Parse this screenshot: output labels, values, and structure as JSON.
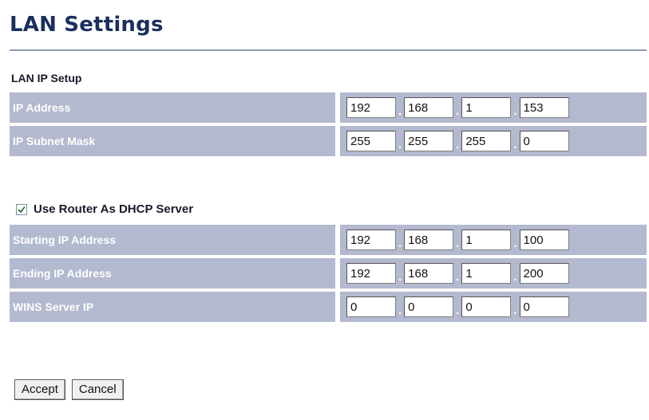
{
  "page": {
    "title": "LAN Settings"
  },
  "lan_ip_setup": {
    "section_label": "LAN IP Setup",
    "rows": [
      {
        "label": "IP Address",
        "octets": [
          "192",
          "168",
          "1",
          "153"
        ]
      },
      {
        "label": "IP Subnet Mask",
        "octets": [
          "255",
          "255",
          "255",
          "0"
        ]
      }
    ]
  },
  "dhcp": {
    "checkbox_label": "Use Router As DHCP Server",
    "checked": true,
    "rows": [
      {
        "label": "Starting IP Address",
        "octets": [
          "192",
          "168",
          "1",
          "100"
        ]
      },
      {
        "label": "Ending IP Address",
        "octets": [
          "192",
          "168",
          "1",
          "200"
        ]
      },
      {
        "label": "WINS Server IP",
        "octets": [
          "0",
          "0",
          "0",
          "0"
        ]
      }
    ]
  },
  "separator": ".",
  "buttons": {
    "accept_label": "Accept",
    "cancel_label": "Cancel"
  },
  "colors": {
    "title": "#1b2f5e",
    "row_background": "#b3b9cf",
    "rule": "#8f98b3"
  },
  "icons": {
    "checkbox": "checkmark-icon"
  }
}
